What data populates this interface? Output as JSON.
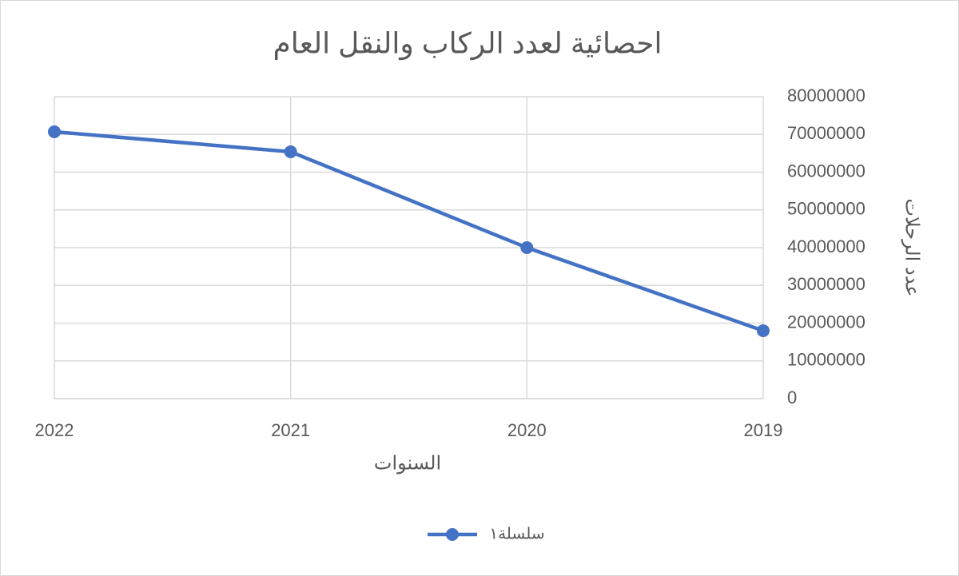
{
  "chart_data": {
    "type": "line",
    "title": "احصائية لعدد الركاب والنقل العام",
    "x_label": "السنوات",
    "y_label": "عدد الرحلات",
    "categories": [
      "2019",
      "2020",
      "2021",
      "2022"
    ],
    "x_reversed": true,
    "y_axis_side": "right",
    "series": [
      {
        "name": "سلسلة١",
        "color": "#4472c4",
        "values": [
          18000000,
          40000000,
          65400000,
          70700000
        ]
      }
    ],
    "ylim": [
      0,
      80000000
    ],
    "yticks": [
      0,
      10000000,
      20000000,
      30000000,
      40000000,
      50000000,
      60000000,
      70000000,
      80000000
    ],
    "grid": true,
    "legend": "bottom"
  }
}
